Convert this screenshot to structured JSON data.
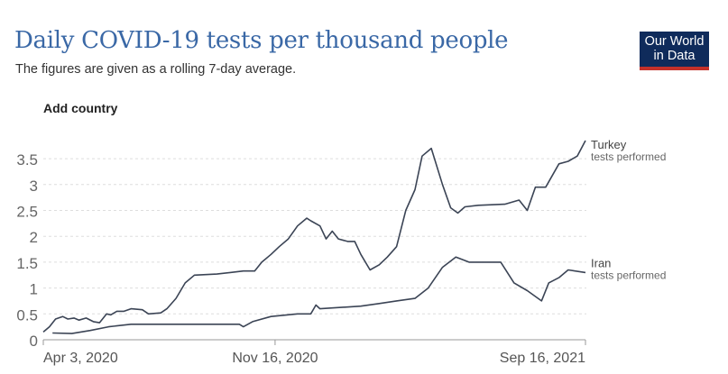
{
  "header": {
    "title": "Daily COVID-19 tests per thousand people",
    "subtitle": "The figures are given as a rolling 7-day average.",
    "logo": "Our World in Data",
    "add_country": "Add country"
  },
  "chart_data": {
    "type": "line",
    "title": "Daily COVID-19 tests per thousand people",
    "x_unit": "days since Apr 3, 2020",
    "xlim": [
      0,
      531
    ],
    "ylim": [
      0,
      3.8
    ],
    "yticks": [
      0,
      0.5,
      1,
      1.5,
      2,
      2.5,
      3,
      3.5
    ],
    "ytick_labels": [
      "0",
      "0.5",
      "1",
      "1.5",
      "2",
      "2.5",
      "3",
      "3.5"
    ],
    "xticks": [
      {
        "day": 0,
        "label": "Apr 3, 2020"
      },
      {
        "day": 227,
        "label": "Nov 16, 2020"
      },
      {
        "day": 531,
        "label": "Sep 16, 2021"
      }
    ],
    "grid": true,
    "series": [
      {
        "name": "Turkey",
        "sublabel": "tests performed",
        "color": "#3b4455",
        "x": [
          0,
          6,
          12,
          19,
          24,
          30,
          35,
          42,
          49,
          55,
          62,
          66,
          72,
          79,
          86,
          97,
          103,
          115,
          121,
          130,
          139,
          148,
          170,
          183,
          196,
          207,
          214,
          223,
          231,
          240,
          249,
          258,
          262,
          271,
          277,
          283,
          289,
          298,
          305,
          311,
          320,
          329,
          337,
          346,
          355,
          364,
          371,
          380,
          391,
          399,
          406,
          413,
          426,
          452,
          466,
          474,
          482,
          492,
          505,
          514,
          523,
          531
        ],
        "y": [
          0.15,
          0.25,
          0.4,
          0.45,
          0.4,
          0.42,
          0.38,
          0.42,
          0.35,
          0.33,
          0.5,
          0.48,
          0.55,
          0.55,
          0.6,
          0.58,
          0.5,
          0.52,
          0.6,
          0.8,
          1.1,
          1.25,
          1.27,
          1.3,
          1.33,
          1.33,
          1.5,
          1.65,
          1.8,
          1.95,
          2.2,
          2.35,
          2.3,
          2.2,
          1.95,
          2.1,
          1.95,
          1.9,
          1.9,
          1.65,
          1.35,
          1.45,
          1.6,
          1.8,
          2.5,
          2.9,
          3.55,
          3.7,
          3.0,
          2.55,
          2.45,
          2.57,
          2.6,
          2.62,
          2.7,
          2.5,
          2.95,
          2.95,
          3.4,
          3.45,
          3.55,
          3.85
        ]
      },
      {
        "name": "Iran",
        "sublabel": "tests performed",
        "color": "#3b4455",
        "x": [
          9,
          28,
          46,
          64,
          86,
          108,
          134,
          170,
          192,
          196,
          205,
          223,
          249,
          262,
          267,
          271,
          311,
          329,
          346,
          364,
          377,
          391,
          404,
          417,
          448,
          461,
          474,
          488,
          495,
          505,
          514,
          531
        ],
        "y": [
          0.13,
          0.12,
          0.18,
          0.25,
          0.3,
          0.3,
          0.3,
          0.3,
          0.3,
          0.25,
          0.35,
          0.45,
          0.5,
          0.5,
          0.67,
          0.6,
          0.65,
          0.7,
          0.75,
          0.8,
          1.0,
          1.4,
          1.6,
          1.5,
          1.5,
          1.1,
          0.95,
          0.75,
          1.1,
          1.2,
          1.35,
          1.3
        ]
      }
    ]
  }
}
